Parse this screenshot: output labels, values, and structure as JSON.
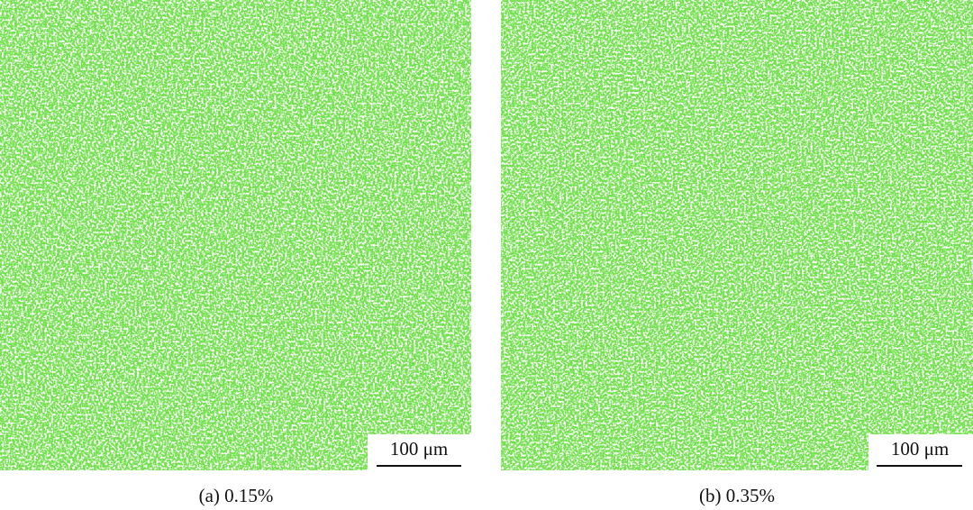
{
  "panels": [
    {
      "caption": "(a) 0.15%",
      "scale_bar": "100 μm"
    },
    {
      "caption": "(b) 0.35%",
      "scale_bar": "100 μm"
    }
  ]
}
